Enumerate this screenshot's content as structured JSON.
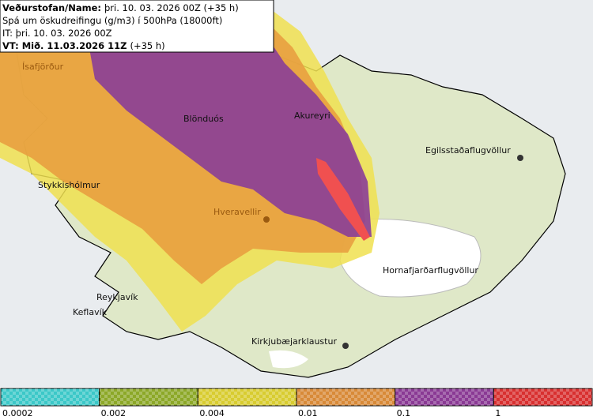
{
  "header": {
    "line1_bold": "Veðurstofan/Name:",
    "line1_rest": "þri. 10. 03. 2026 00Z (+35 h)",
    "line2": "Spá um öskudreifingu (g/m3) í 500hPa (18000ft)",
    "line3": "IT: þri. 10. 03. 2026 00Z",
    "line4_bold": "VT: Mið. 11.03.2026 11Z",
    "line4_rest": "(+35 h)"
  },
  "places": [
    "Ísafjörður",
    "Blönduós",
    "Akureyri",
    "Egilsstaðaflugvöllur",
    "Stykkishólmur",
    "Hveravellir",
    "Reykjavík",
    "Keflavík",
    "Hornafjarðarflugvöllur",
    "Kirkjubæjarklaustur"
  ],
  "legend": {
    "labels": [
      "0.0002",
      "0.002",
      "0.004",
      "0.01",
      "0.1",
      "1"
    ],
    "colors": [
      "#3cc8c8",
      "#8ca828",
      "#d8cc30",
      "#d88a38",
      "#8a3a94",
      "#d83030"
    ]
  }
}
